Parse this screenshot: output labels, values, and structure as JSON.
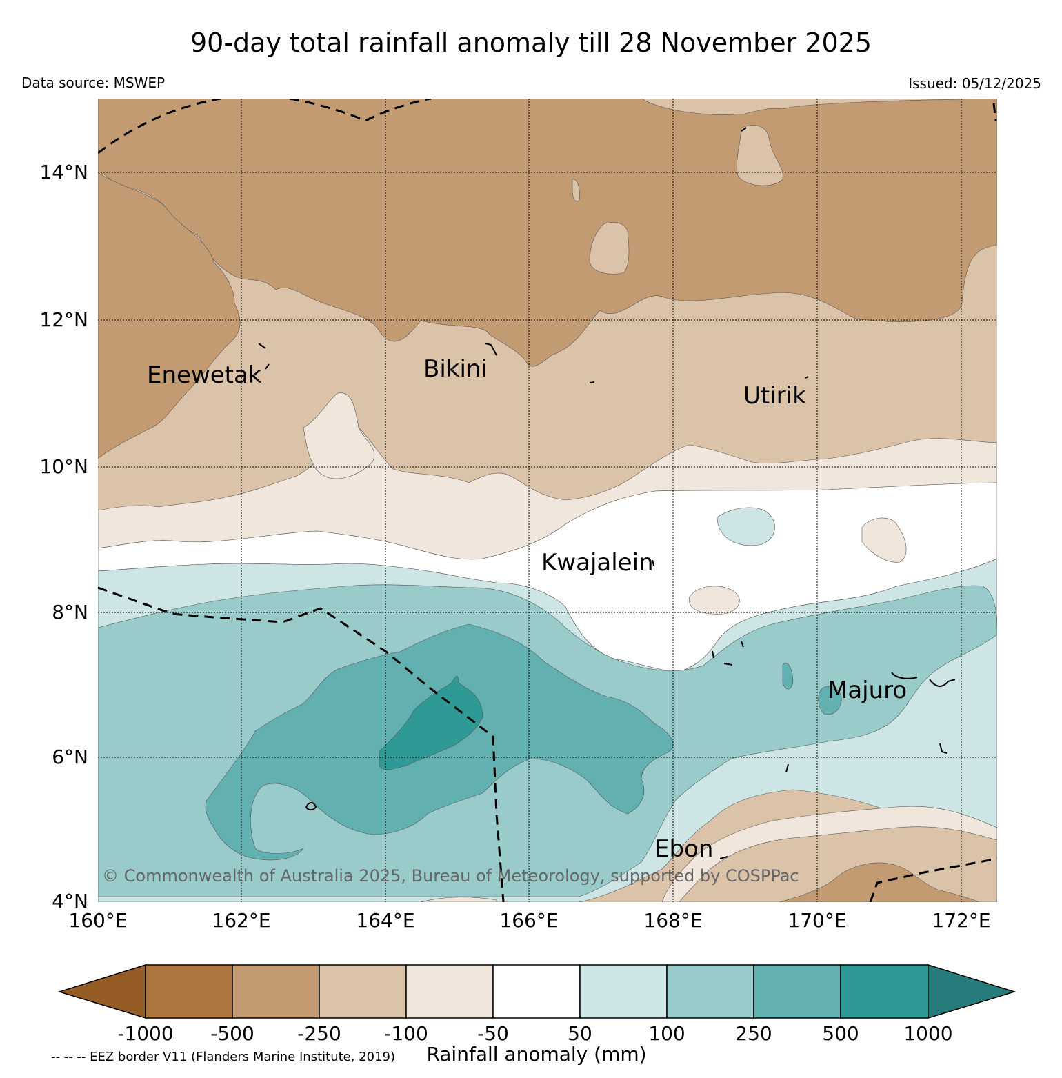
{
  "header": {
    "title": "90-day total rainfall anomaly till 28 November 2025",
    "data_source": "Data source: MSWEP",
    "issued": "Issued: 05/12/2025"
  },
  "map": {
    "lat_labels": [
      "14°N",
      "12°N",
      "10°N",
      "8°N",
      "6°N",
      "4°N"
    ],
    "lon_labels": [
      "160°E",
      "162°E",
      "164°E",
      "166°E",
      "168°E",
      "170°E",
      "172°E"
    ],
    "places": {
      "enewetak": "Enewetak",
      "bikini": "Bikini",
      "utirik": "Utirik",
      "kwajalein": "Kwajalein",
      "majuro": "Majuro",
      "ebon": "Ebon"
    },
    "credit": "© Commonwealth of Australia 2025, Bureau of Meteorology, supported by COSPPac"
  },
  "legend": {
    "ticks": [
      "-1000",
      "-500",
      "-250",
      "-100",
      "-50",
      "50",
      "100",
      "250",
      "500",
      "1000"
    ],
    "title": "Rainfall anomaly (mm)",
    "eez_note": "-- -- -- EEZ border V11 (Flanders Marine Institute, 2019)",
    "colors": [
      "#955c25",
      "#ae763f",
      "#c39b72",
      "#dbc3aa",
      "#f0e6dc",
      "#ffffff",
      "#cde5e5",
      "#9acbcb",
      "#63b0b0",
      "#2f9995",
      "#267c7a"
    ]
  }
}
